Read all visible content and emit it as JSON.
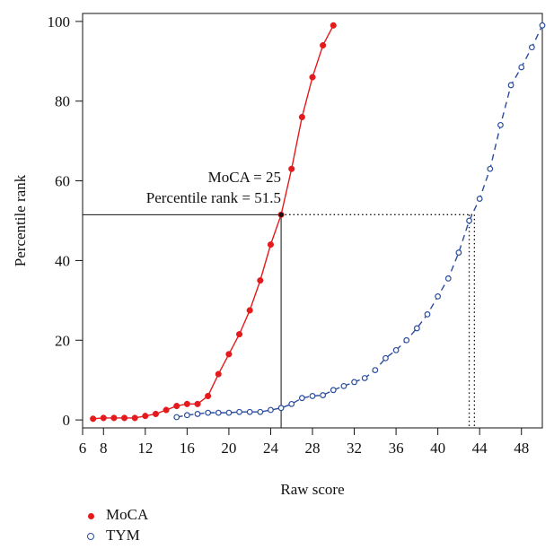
{
  "chart_data": {
    "type": "line",
    "title": "",
    "xlabel": "Raw score",
    "ylabel": "Percentile rank",
    "xlim": [
      6,
      50
    ],
    "ylim": [
      -2,
      102
    ],
    "xticks": [
      6,
      8,
      12,
      16,
      20,
      24,
      28,
      32,
      36,
      40,
      44,
      48
    ],
    "yticks": [
      0,
      20,
      40,
      60,
      80,
      100
    ],
    "grid": false,
    "legend_position": "bottom-left",
    "annotation": {
      "lines": [
        "MoCA = 25",
        "Percentile rank = 51.5"
      ],
      "x": 25,
      "y": 51.5,
      "tym_x_range": [
        43,
        43.5
      ]
    },
    "series": [
      {
        "name": "MoCA",
        "color": "#e41a1c",
        "marker": "filled-circle",
        "linestyle": "solid",
        "x": [
          7,
          8,
          9,
          10,
          11,
          12,
          13,
          14,
          15,
          16,
          17,
          18,
          19,
          20,
          21,
          22,
          23,
          24,
          25,
          26,
          27,
          28,
          29,
          30
        ],
        "y": [
          0.3,
          0.5,
          0.5,
          0.5,
          0.5,
          1.0,
          1.5,
          2.5,
          3.5,
          4.0,
          4.0,
          6.0,
          11.5,
          16.5,
          21.5,
          27.5,
          35.0,
          44.0,
          51.5,
          63.0,
          76.0,
          86.0,
          94.0,
          99.0
        ]
      },
      {
        "name": "TYM",
        "color": "#2a4d9b",
        "marker": "open-circle",
        "linestyle": "dashed",
        "x": [
          15,
          16,
          17,
          18,
          19,
          20,
          21,
          22,
          23,
          24,
          25,
          26,
          27,
          28,
          29,
          30,
          31,
          32,
          33,
          34,
          35,
          36,
          37,
          38,
          39,
          40,
          41,
          42,
          43,
          44,
          45,
          46,
          47,
          48,
          49,
          50
        ],
        "y": [
          0.7,
          1.2,
          1.5,
          1.8,
          1.8,
          1.8,
          2.0,
          2.0,
          2.0,
          2.5,
          3.0,
          4.0,
          5.5,
          6.0,
          6.2,
          7.5,
          8.5,
          9.5,
          10.5,
          12.5,
          15.5,
          17.5,
          20.0,
          23.0,
          26.5,
          31.0,
          35.5,
          42.0,
          50.0,
          55.5,
          63.0,
          74.0,
          84.0,
          88.5,
          93.5,
          99.0
        ]
      }
    ]
  }
}
